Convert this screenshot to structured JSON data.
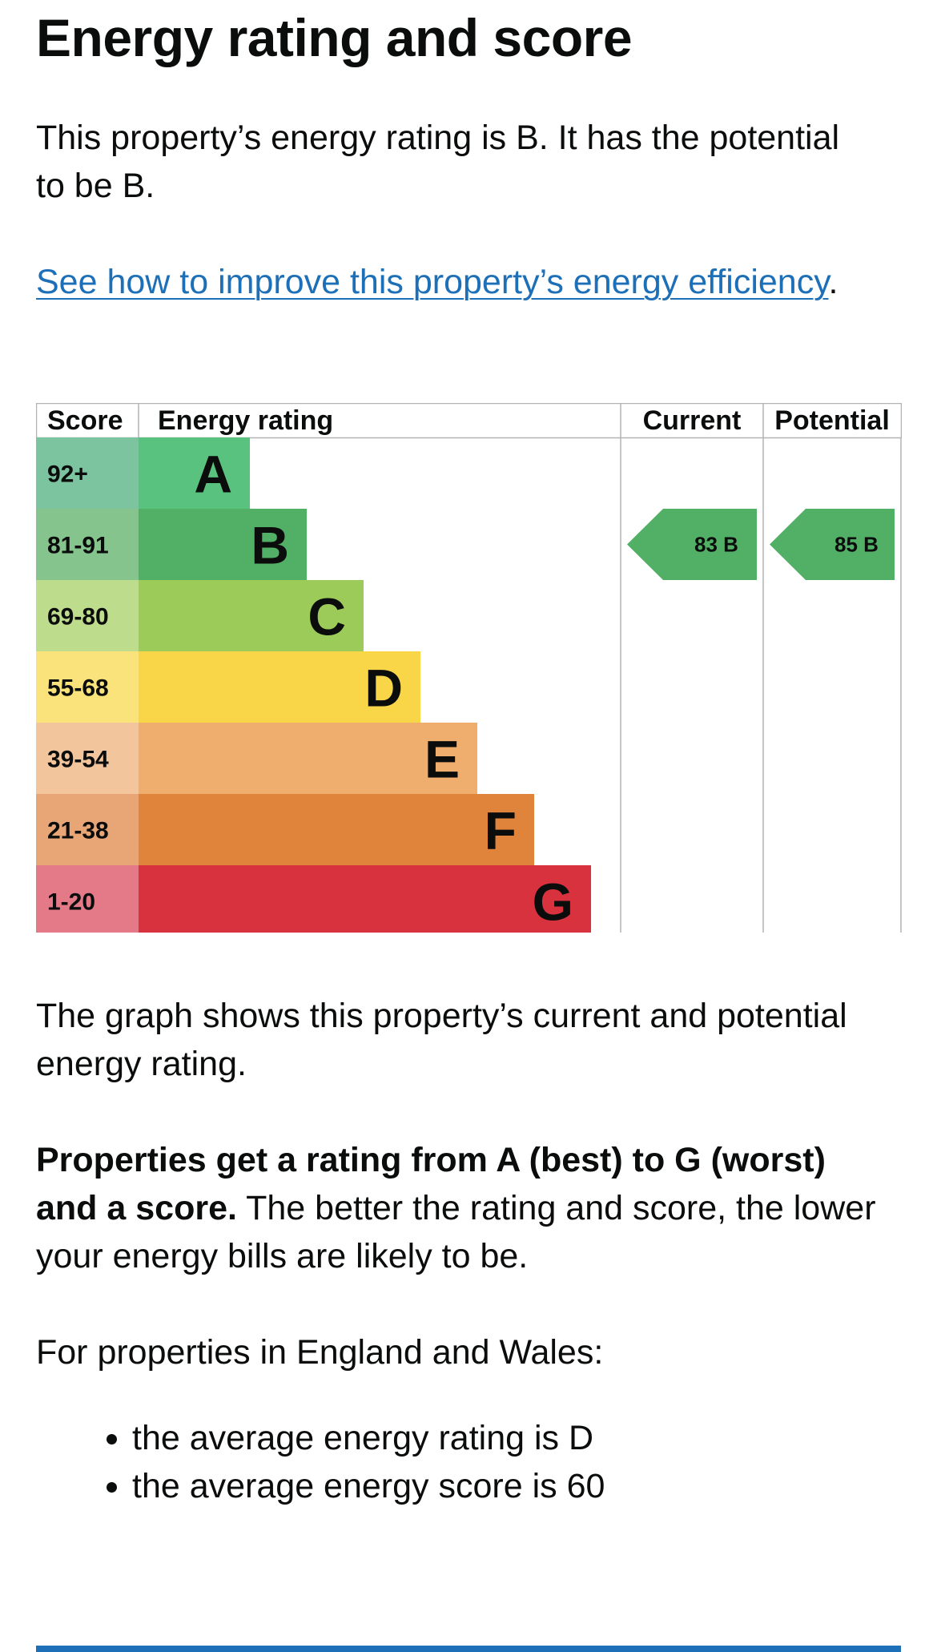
{
  "heading": "Energy rating and score",
  "intro": "This property’s energy rating is B. It has the potential to be B.",
  "improve_link": {
    "text": "See how to improve this property’s energy efficiency",
    "suffix": "."
  },
  "chart_data": {
    "type": "bar",
    "headers": {
      "score": "Score",
      "rating": "Energy rating",
      "current": "Current",
      "potential": "Potential"
    },
    "bands": [
      {
        "letter": "A",
        "range": "92+",
        "color": "#5ac27f",
        "score_color": "#7cc4a0"
      },
      {
        "letter": "B",
        "range": "81-91",
        "color": "#52b066",
        "score_color": "#86c48e"
      },
      {
        "letter": "C",
        "range": "69-80",
        "color": "#9dcb5a",
        "score_color": "#bddc8c"
      },
      {
        "letter": "D",
        "range": "55-68",
        "color": "#f9d548",
        "score_color": "#fae37a"
      },
      {
        "letter": "E",
        "range": "39-54",
        "color": "#efad6e",
        "score_color": "#f3c59c"
      },
      {
        "letter": "F",
        "range": "21-38",
        "color": "#e0843b",
        "score_color": "#e8a677"
      },
      {
        "letter": "G",
        "range": "1-20",
        "color": "#d7323e",
        "score_color": "#e47988"
      }
    ],
    "current": {
      "score": "83",
      "rating": "B",
      "band_index": 1,
      "color": "#52b066"
    },
    "potential": {
      "score": "85",
      "rating": "B",
      "band_index": 1,
      "color": "#52b066"
    }
  },
  "graph_caption": "The graph shows this property’s current and potential energy rating.",
  "scale_info": {
    "bold": "Properties get a rating from A (best) to G (worst) and a score.",
    "rest": " The better the rating and score, the lower your energy bills are likely to be."
  },
  "england_wales_intro": "For properties in England and Wales:",
  "averages": [
    "the average energy rating is D",
    "the average energy score is 60"
  ]
}
